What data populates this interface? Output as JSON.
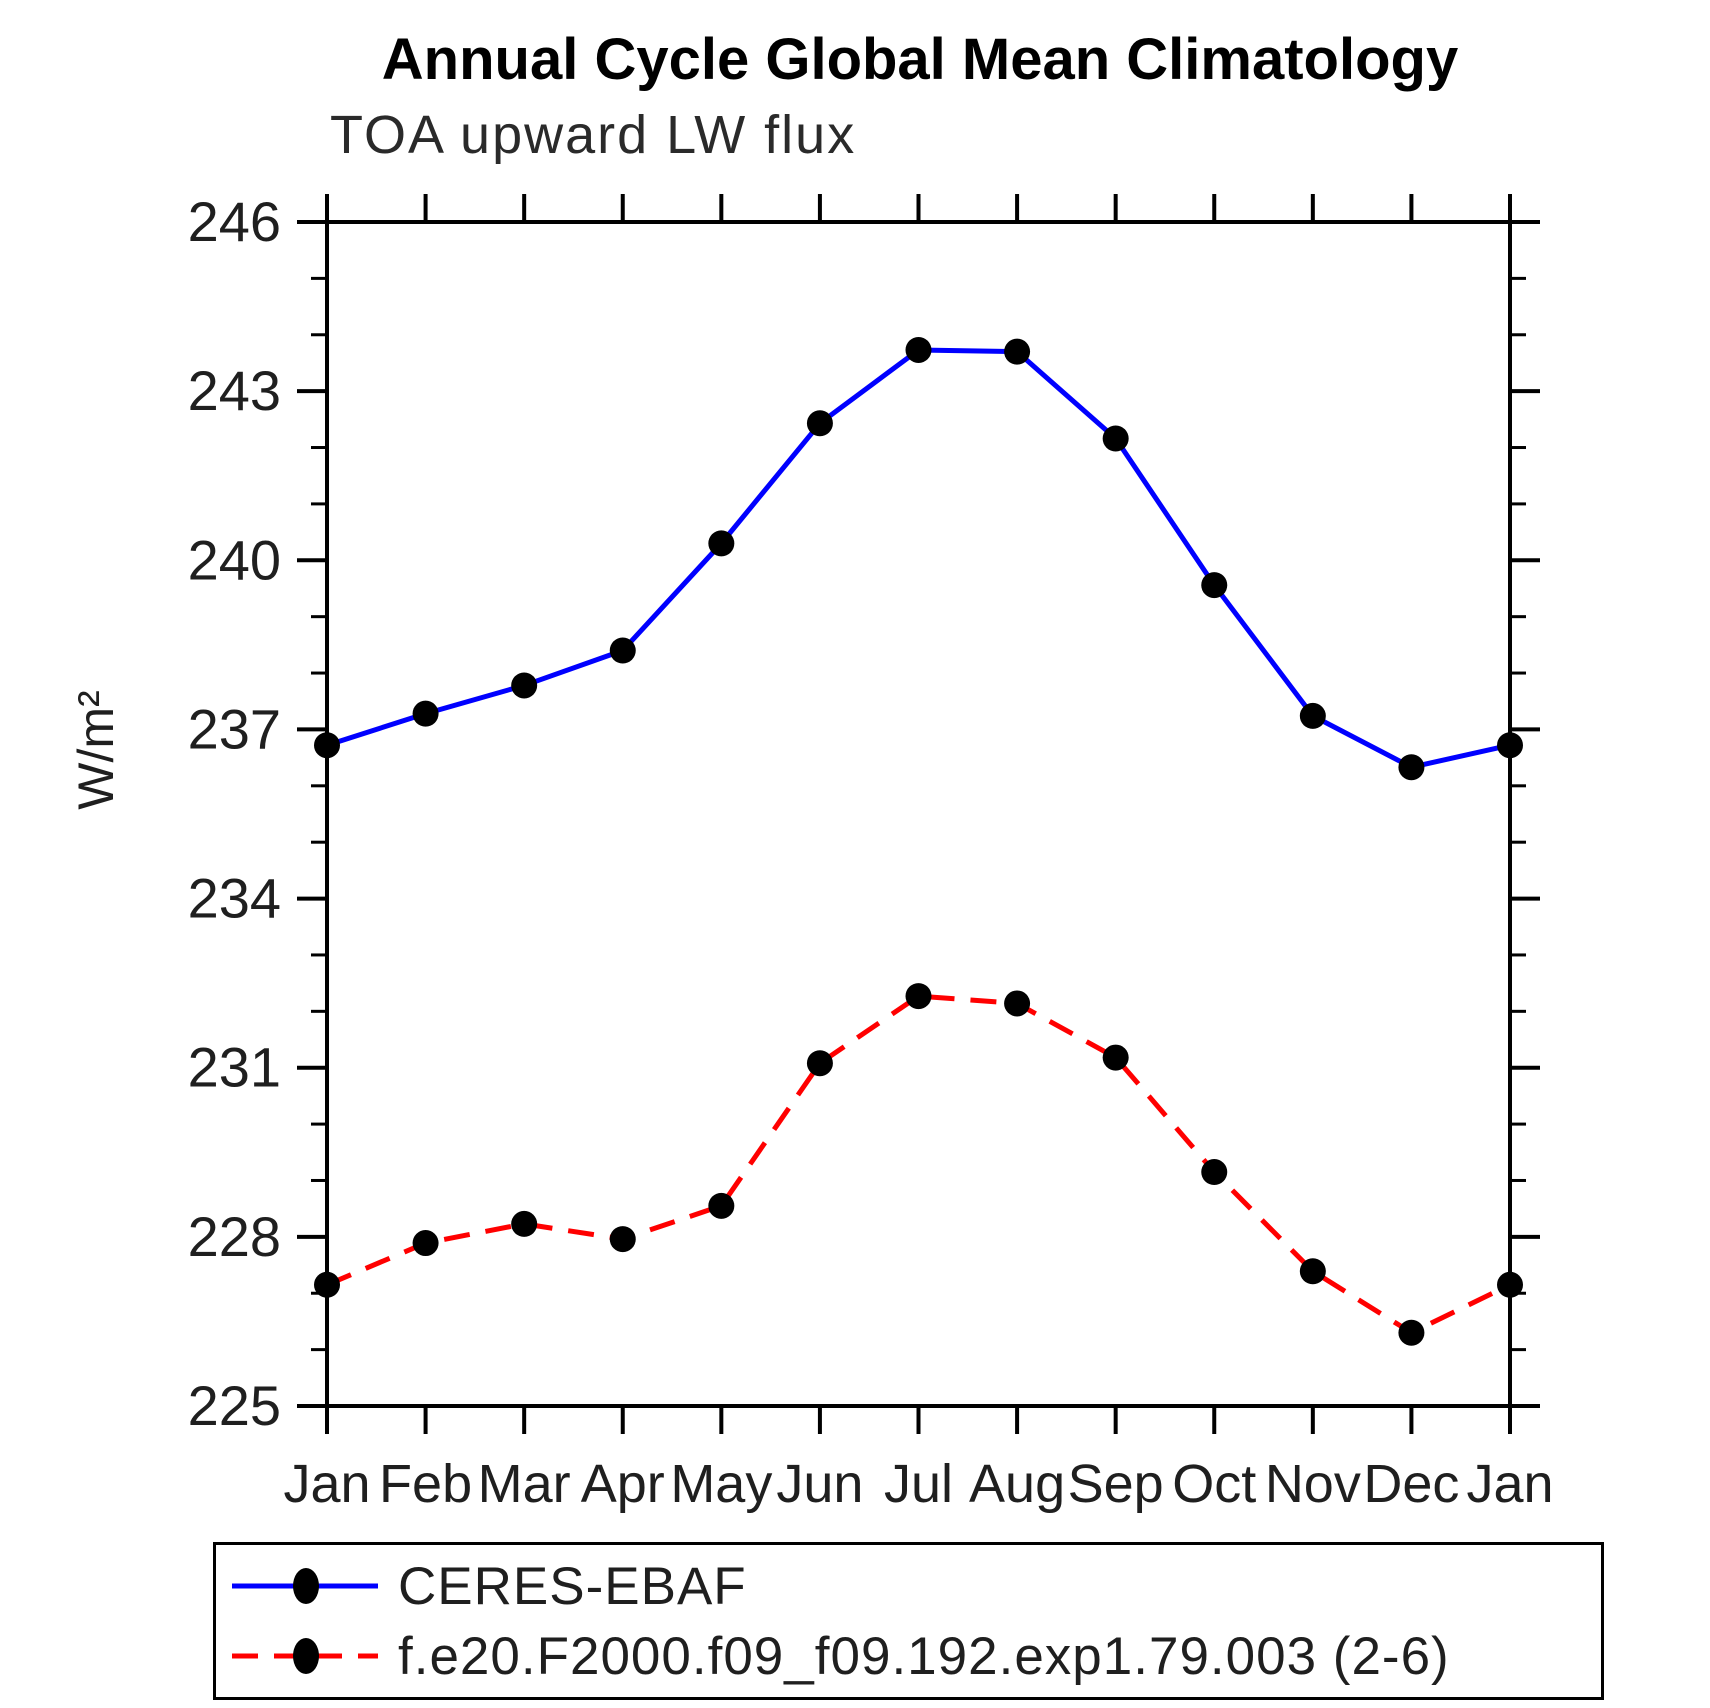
{
  "chart": {
    "title": "Annual Cycle Global Mean Climatology",
    "subtitle": "TOA upward LW flux",
    "ylabel": "W/m²"
  },
  "chart_data": {
    "type": "line",
    "title": "Annual Cycle Global Mean Climatology",
    "subtitle": "TOA upward LW flux",
    "xlabel": "",
    "ylabel": "W/m²",
    "categories": [
      "Jan",
      "Feb",
      "Mar",
      "Apr",
      "May",
      "Jun",
      "Jul",
      "Aug",
      "Sep",
      "Oct",
      "Nov",
      "Dec",
      "Jan"
    ],
    "ylim": [
      225,
      246
    ],
    "y_major_ticks": [
      225,
      228,
      231,
      234,
      237,
      240,
      243,
      246
    ],
    "y_minor_step": 1,
    "grid": false,
    "legend_position": "bottom",
    "axis_color": "#000000",
    "marker_radius_px": 13,
    "series": [
      {
        "name": "CERES-EBAF",
        "color": "#0000ff",
        "line_style": "solid",
        "marker": "circle",
        "marker_color": "#000000",
        "values": [
          236.72,
          237.28,
          237.78,
          238.4,
          240.3,
          242.43,
          243.73,
          243.7,
          242.16,
          239.56,
          237.24,
          236.33,
          236.72
        ]
      },
      {
        "name": "f.e20.F2000.f09_f09.192.exp1.79.003 (2-6)",
        "color": "#ff0000",
        "line_style": "dashed",
        "marker": "circle",
        "marker_color": "#000000",
        "values": [
          227.15,
          227.89,
          228.23,
          227.96,
          228.55,
          231.08,
          232.27,
          232.14,
          231.18,
          229.15,
          227.39,
          226.3,
          227.15
        ]
      }
    ]
  }
}
